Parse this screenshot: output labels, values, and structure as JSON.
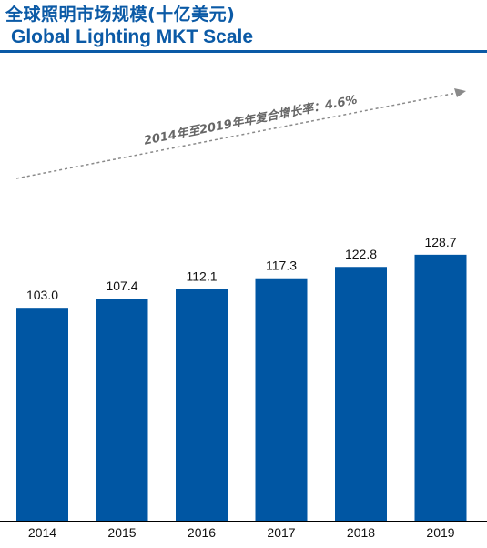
{
  "header": {
    "title_cn": "全球照明市场规模(十亿美元)",
    "title_en": "Global Lighting MKT Scale"
  },
  "colors": {
    "bar": "#0056a3",
    "title": "#0b5aa6",
    "annotation": "#666666"
  },
  "chart_data": {
    "type": "bar",
    "categories": [
      "2014",
      "2015",
      "2016",
      "2017",
      "2018",
      "2019"
    ],
    "values": [
      103.0,
      107.4,
      112.1,
      117.3,
      122.8,
      128.7
    ],
    "value_labels": [
      "103.0",
      "107.4",
      "112.1",
      "117.3",
      "122.8",
      "128.7"
    ],
    "title": "全球照明市场规模(十亿美元)",
    "subtitle": "Global Lighting MKT Scale",
    "xlabel": "",
    "ylabel": "",
    "ylim": [
      0,
      135
    ],
    "grid": false,
    "legend": "none",
    "annotation": {
      "text": "2014年至2019年年复合增长率：4.6%",
      "style": "dashed-arrow-trend"
    }
  }
}
